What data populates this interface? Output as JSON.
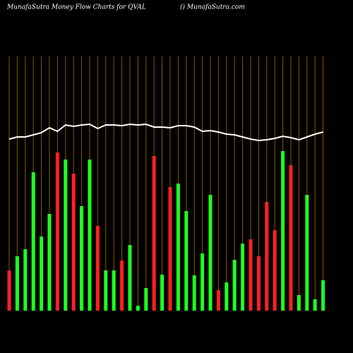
{
  "chart_data": {
    "type": "bar",
    "title": "MunafaSutra  Money Flow  Charts for QVAL",
    "subtitle": "() MunafaSutra.com",
    "categories": [
      null,
      null,
      null,
      null,
      null,
      null,
      null,
      null,
      null,
      null,
      null,
      null,
      null,
      null,
      null,
      null,
      null,
      null,
      null,
      null,
      null,
      null,
      null,
      null,
      null,
      null,
      null,
      null,
      null,
      null,
      null,
      null,
      null,
      null,
      null,
      null,
      null,
      null,
      null,
      null
    ],
    "ylim": [
      0,
      360
    ],
    "grid": true,
    "grid_color": "#8b5a00",
    "series": [
      {
        "type": "bar",
        "values": [
          57,
          77,
          87,
          196,
          105,
          137,
          224,
          214,
          194,
          148,
          214,
          120,
          57,
          57,
          71,
          93,
          7,
          32,
          219,
          51,
          175,
          180,
          141,
          50,
          81,
          164,
          29,
          40,
          72,
          95,
          101,
          77,
          154,
          114,
          226,
          206,
          22,
          164,
          16,
          43
        ],
        "colors": [
          "#ff2020",
          "#20ff20",
          "#20ff20",
          "#20ff20",
          "#20ff20",
          "#20ff20",
          "#ff2020",
          "#20ff20",
          "#ff2020",
          "#20ff20",
          "#20ff20",
          "#ff2020",
          "#20ff20",
          "#20ff20",
          "#ff2020",
          "#20ff20",
          "#20ff20",
          "#20ff20",
          "#ff2020",
          "#20ff20",
          "#ff2020",
          "#20ff20",
          "#20ff20",
          "#20ff20",
          "#20ff20",
          "#20ff20",
          "#ff2020",
          "#20ff20",
          "#20ff20",
          "#20ff20",
          "#ff2020",
          "#ff2020",
          "#ff2020",
          "#ff2020",
          "#20ff20",
          "#ff2020",
          "#20ff20",
          "#20ff20",
          "#20ff20",
          "#20ff20"
        ]
      },
      {
        "type": "line",
        "color": "#ffffff",
        "values": [
          243,
          246,
          246,
          249,
          252,
          259,
          254,
          263,
          261,
          263,
          264,
          258,
          263,
          263,
          262,
          264,
          263,
          264,
          260,
          260,
          259,
          262,
          262,
          260,
          254,
          255,
          253,
          250,
          249,
          246,
          243,
          241,
          242,
          244,
          247,
          245,
          242,
          246,
          250,
          253
        ]
      }
    ]
  }
}
